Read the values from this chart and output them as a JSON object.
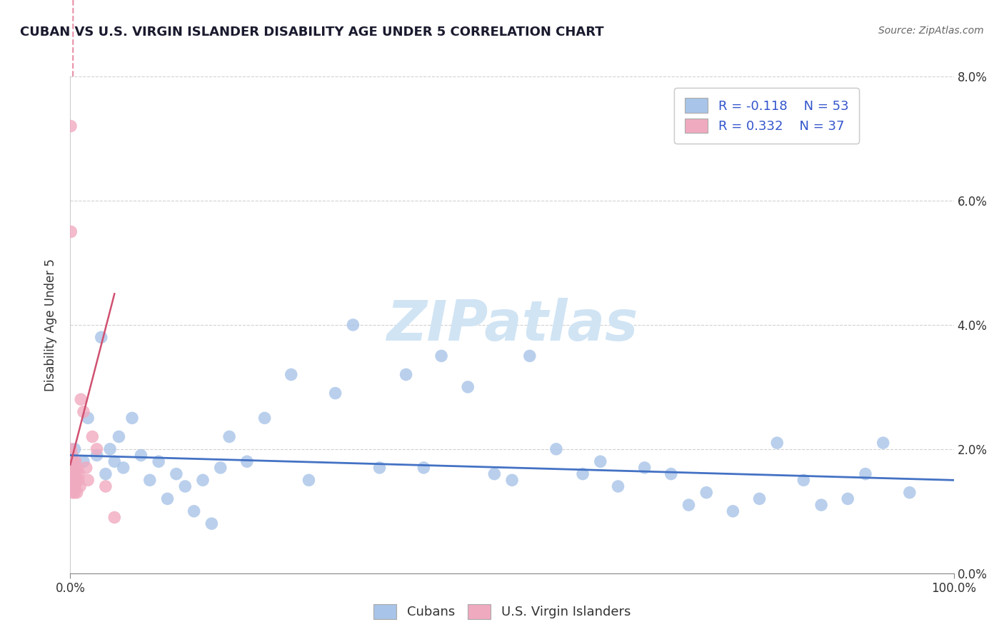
{
  "title": "CUBAN VS U.S. VIRGIN ISLANDER DISABILITY AGE UNDER 5 CORRELATION CHART",
  "source": "Source: ZipAtlas.com",
  "ylabel": "Disability Age Under 5",
  "xlim": [
    0,
    100
  ],
  "ylim": [
    0,
    8.0
  ],
  "yticks": [
    0,
    2.0,
    4.0,
    6.0,
    8.0
  ],
  "xticks": [
    0,
    100
  ],
  "xtick_labels": [
    "0.0%",
    "100.0%"
  ],
  "blue_color": "#a8c4e8",
  "pink_color": "#f0aac0",
  "blue_line_color": "#4472c4",
  "pink_line_color": "#d05070",
  "pink_dash_color": "#e890a8",
  "watermark_text": "ZIPatlas",
  "watermark_color": "#d0e4f4",
  "legend_R_blue": "R = -0.118",
  "legend_N_blue": "N = 53",
  "legend_R_pink": "R = 0.332",
  "legend_N_pink": "N = 37",
  "cubans_label": "Cubans",
  "virgin_islanders_label": "U.S. Virgin Islanders",
  "blue_scatter_x": [
    0.5,
    1.5,
    2.0,
    3.0,
    3.5,
    4.0,
    4.5,
    5.0,
    5.5,
    6.0,
    7.0,
    8.0,
    9.0,
    10.0,
    11.0,
    12.0,
    13.0,
    14.0,
    15.0,
    16.0,
    17.0,
    18.0,
    20.0,
    22.0,
    25.0,
    27.0,
    30.0,
    32.0,
    35.0,
    38.0,
    40.0,
    42.0,
    45.0,
    48.0,
    50.0,
    52.0,
    55.0,
    58.0,
    60.0,
    62.0,
    65.0,
    68.0,
    70.0,
    72.0,
    75.0,
    78.0,
    80.0,
    83.0,
    85.0,
    88.0,
    90.0,
    92.0,
    95.0
  ],
  "blue_scatter_y": [
    2.0,
    1.8,
    2.5,
    1.9,
    3.8,
    1.6,
    2.0,
    1.8,
    2.2,
    1.7,
    2.5,
    1.9,
    1.5,
    1.8,
    1.2,
    1.6,
    1.4,
    1.0,
    1.5,
    0.8,
    1.7,
    2.2,
    1.8,
    2.5,
    3.2,
    1.5,
    2.9,
    4.0,
    1.7,
    3.2,
    1.7,
    3.5,
    3.0,
    1.6,
    1.5,
    3.5,
    2.0,
    1.6,
    1.8,
    1.4,
    1.7,
    1.6,
    1.1,
    1.3,
    1.0,
    1.2,
    2.1,
    1.5,
    1.1,
    1.2,
    1.6,
    2.1,
    1.3
  ],
  "pink_scatter_x": [
    0.05,
    0.07,
    0.08,
    0.1,
    0.12,
    0.15,
    0.18,
    0.2,
    0.22,
    0.25,
    0.28,
    0.3,
    0.32,
    0.35,
    0.38,
    0.4,
    0.42,
    0.45,
    0.48,
    0.5,
    0.55,
    0.6,
    0.65,
    0.7,
    0.75,
    0.8,
    0.9,
    1.0,
    1.1,
    1.2,
    1.5,
    1.8,
    2.0,
    2.5,
    3.0,
    4.0,
    5.0
  ],
  "pink_scatter_y": [
    7.2,
    5.5,
    1.8,
    2.0,
    1.6,
    1.4,
    1.8,
    1.5,
    1.9,
    1.3,
    1.6,
    1.4,
    1.8,
    1.5,
    1.6,
    1.4,
    1.7,
    1.5,
    1.3,
    1.6,
    1.4,
    1.8,
    1.5,
    1.6,
    1.3,
    1.7,
    1.5,
    1.6,
    1.4,
    2.8,
    2.6,
    1.7,
    1.5,
    2.2,
    2.0,
    1.4,
    0.9
  ],
  "pink_line_x0": 0.0,
  "pink_line_y0": 1.75,
  "pink_line_x1": 5.0,
  "pink_line_y1": 4.5,
  "pink_dash_x0": -0.5,
  "pink_dash_y0": 1.4,
  "pink_dash_x1": 0.0,
  "pink_dash_y1": 1.75,
  "blue_line_x0": 0,
  "blue_line_y0": 1.9,
  "blue_line_x1": 100,
  "blue_line_y1": 1.5
}
